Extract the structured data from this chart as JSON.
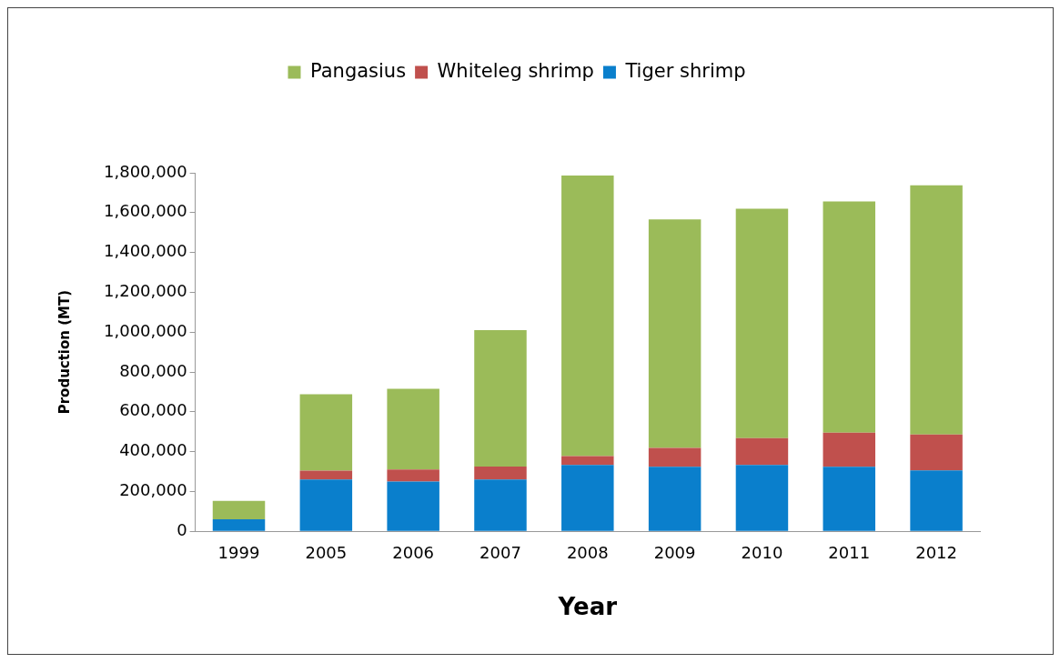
{
  "chart_data": {
    "type": "bar",
    "stacked": true,
    "xlabel": "Year",
    "ylabel": "Production (MT)",
    "categories": [
      "1999",
      "2005",
      "2006",
      "2007",
      "2008",
      "2009",
      "2010",
      "2011",
      "2012"
    ],
    "series": [
      {
        "name": "Tiger shrimp",
        "color": "#0a7fcc",
        "values": [
          60000,
          260000,
          250000,
          260000,
          333000,
          324000,
          333000,
          324000,
          306000
        ]
      },
      {
        "name": "Whiteleg shrimp",
        "color": "#c0504d",
        "values": [
          0,
          45000,
          60000,
          65000,
          45000,
          95000,
          135000,
          171000,
          180000
        ]
      },
      {
        "name": "Pangasius",
        "color": "#9bbb59",
        "values": [
          93000,
          383000,
          405000,
          685000,
          1408000,
          1147000,
          1152000,
          1161000,
          1251000
        ]
      }
    ],
    "ylim": [
      0,
      1800000
    ],
    "yticks": [
      0,
      {
        "value": 200000,
        "label": "200,000"
      },
      {
        "value": 400000,
        "label": "400,000"
      },
      {
        "value": 600000,
        "label": "600,000"
      },
      {
        "value": 800000,
        "label": "800,000"
      },
      {
        "value": 1000000,
        "label": "1,000,000"
      },
      {
        "value": 1200000,
        "label": "1,200,000"
      },
      {
        "value": 1400000,
        "label": "1,400,000"
      },
      {
        "value": 1600000,
        "label": "1,600,000"
      },
      {
        "value": 1800000,
        "label": "1,800,000"
      }
    ],
    "grid": false,
    "legend": "top"
  }
}
